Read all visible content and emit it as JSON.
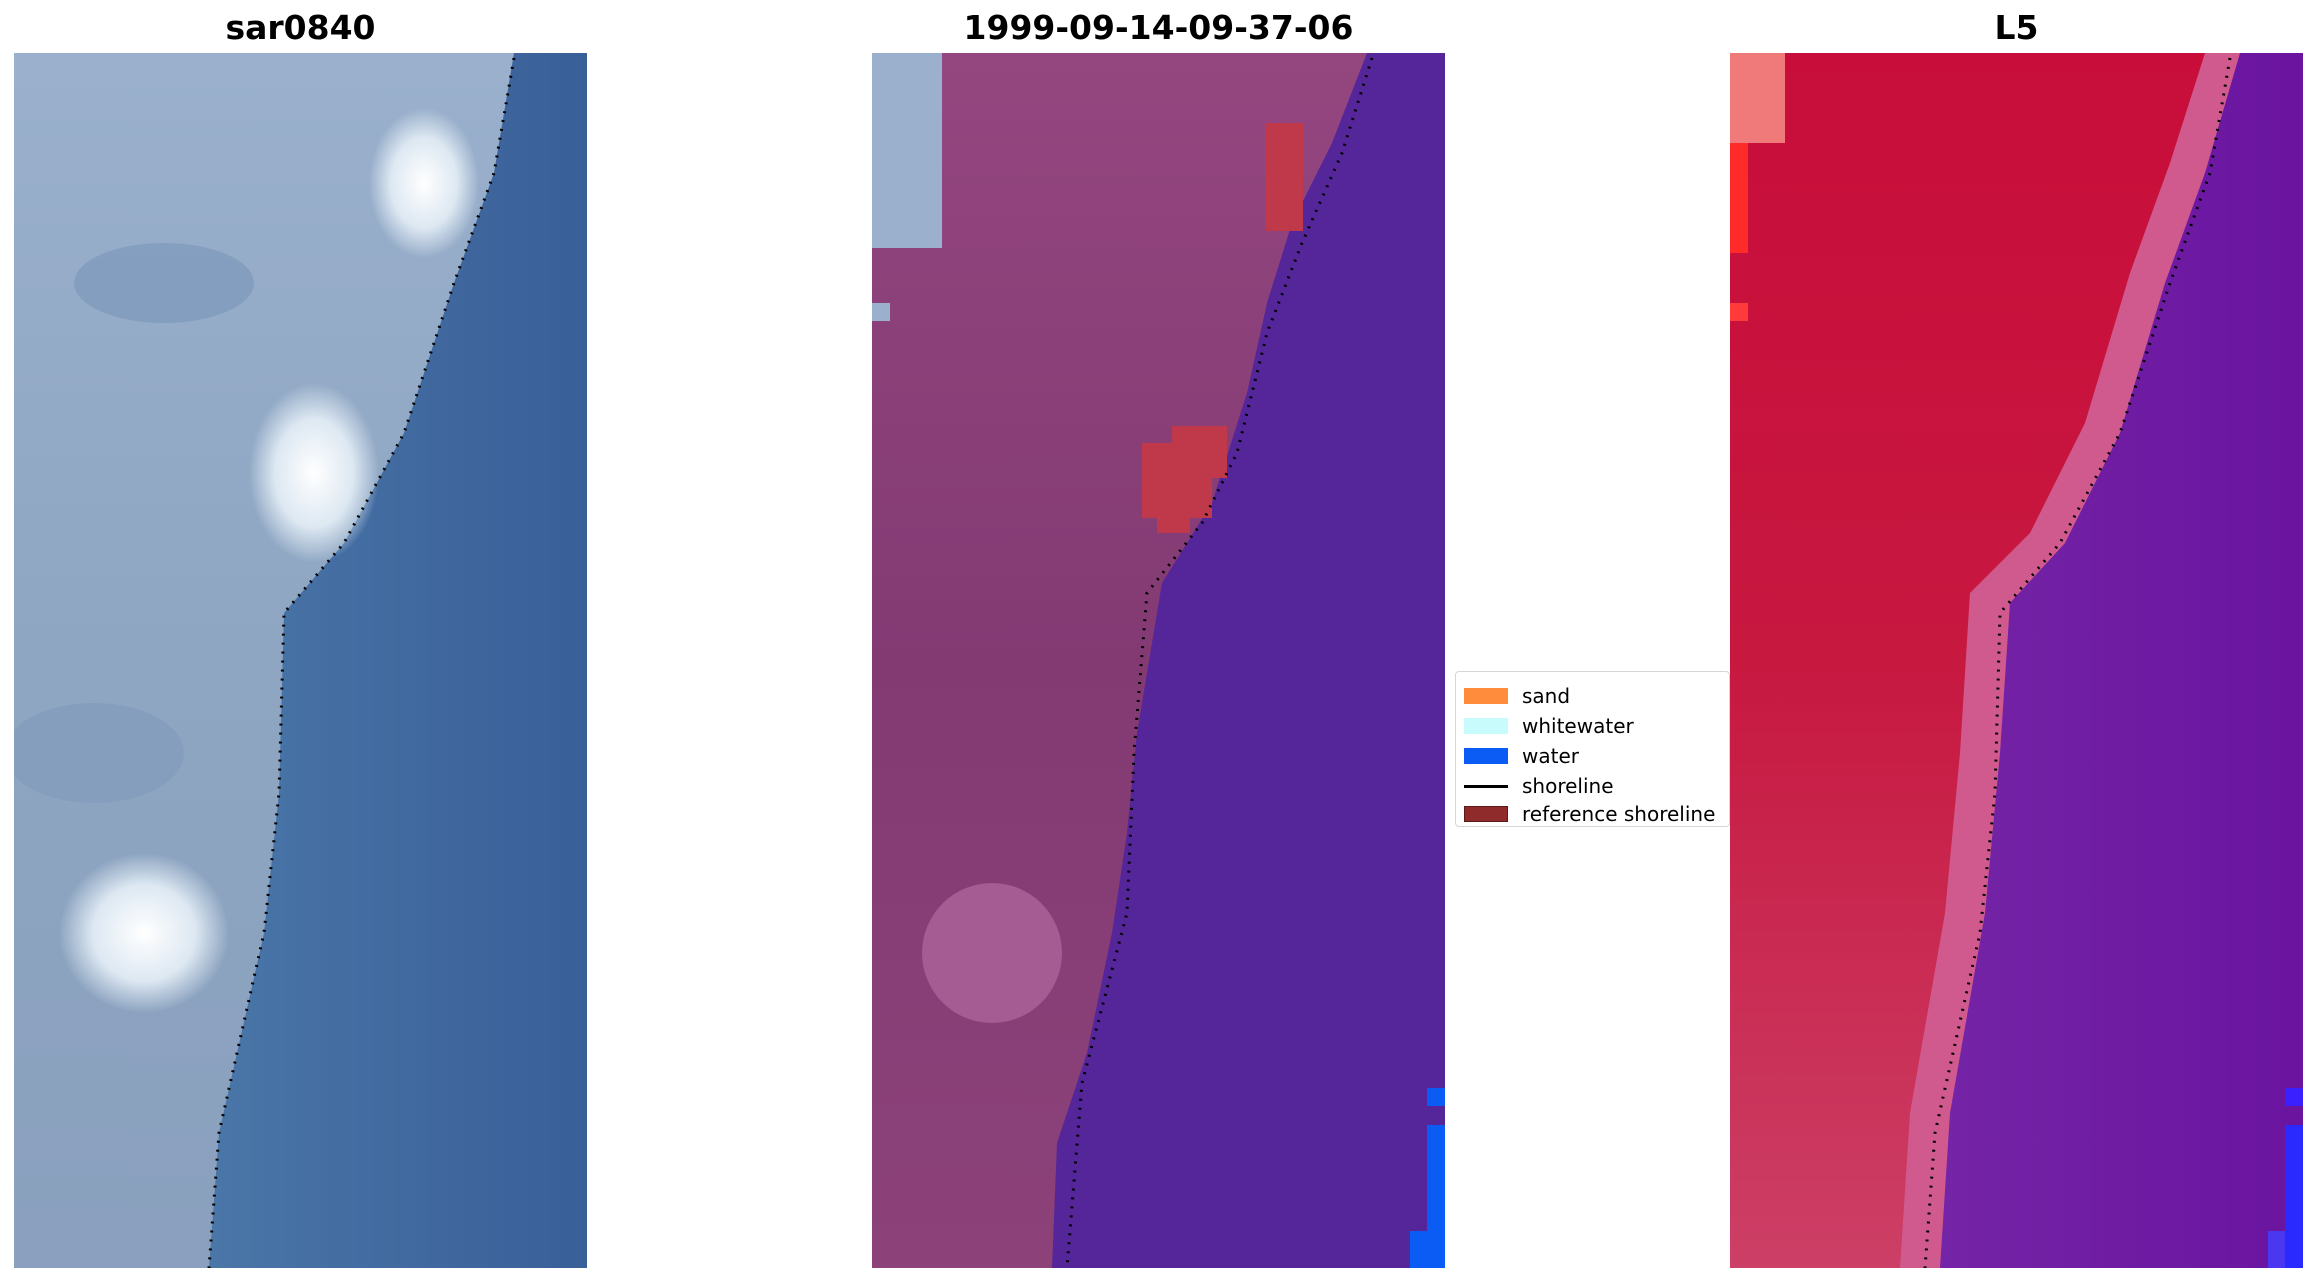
{
  "panels": [
    {
      "title": "sar0840",
      "kind": "rgb"
    },
    {
      "title": "1999-09-14-09-37-06",
      "kind": "classified"
    },
    {
      "title": "L5",
      "kind": "index"
    }
  ],
  "legend": {
    "items": [
      {
        "label": "sand",
        "type": "patch",
        "color": "#ff8c3c"
      },
      {
        "label": "whitewater",
        "type": "patch",
        "color": "#c8fcfc"
      },
      {
        "label": "water",
        "type": "patch",
        "color": "#0a5cf5"
      },
      {
        "label": "shoreline",
        "type": "line",
        "color": "#000000"
      },
      {
        "label": "reference shoreline",
        "type": "patch",
        "color": "#8f2b2b"
      }
    ]
  },
  "colors": {
    "rgb_land": "#8fa6c4",
    "rgb_water": "#3e689e",
    "class_land": "#8a3f7e",
    "class_water": "#55259a",
    "class_ref": "#c0394a",
    "index_land": "#c8123e",
    "index_water": "#6a1aa0",
    "shoreline_dots": "#000000"
  }
}
